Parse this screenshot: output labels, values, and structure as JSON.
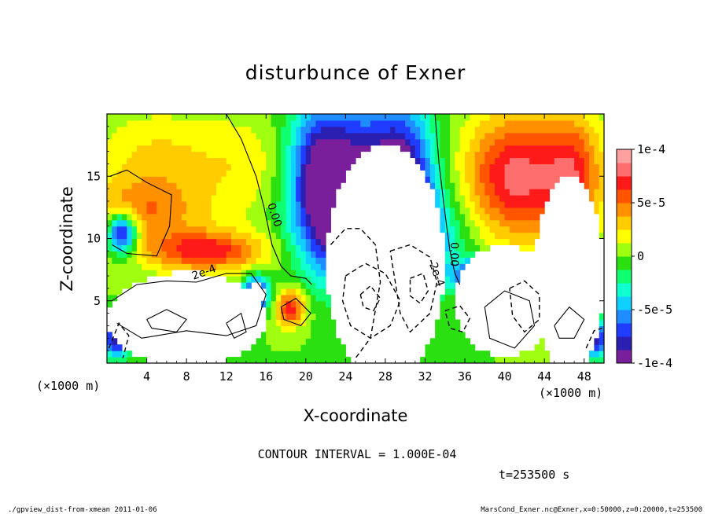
{
  "chart_data": {
    "type": "heatmap",
    "title": "disturbunce of Exner",
    "xlabel": "X-coordinate",
    "ylabel": "Z-coordinate",
    "x_unit": "(×1000 m)",
    "y_unit": "(×1000 m)",
    "xlim": [
      0,
      50
    ],
    "ylim": [
      0,
      20
    ],
    "x_ticks": [
      4,
      8,
      12,
      16,
      20,
      24,
      28,
      32,
      36,
      40,
      44,
      48
    ],
    "y_ticks": [
      5,
      10,
      15
    ],
    "colorbar": {
      "min": -0.0001,
      "max": 0.0001,
      "tick_values": [
        0.0001,
        5e-05,
        0,
        -5e-05,
        -0.0001
      ],
      "tick_labels": [
        "1e-4",
        "5e-5",
        "0",
        "-5e-5",
        "-1e-4"
      ],
      "colors": [
        "#7a1f9c",
        "#2a1fb0",
        "#1f3cff",
        "#1f8cff",
        "#10d0ff",
        "#10ffd0",
        "#10ff70",
        "#2ae010",
        "#a0ff10",
        "#ffff00",
        "#ffcc00",
        "#ff9000",
        "#ff5500",
        "#ff1a1a",
        "#ff6e6e",
        "#ffa0a0"
      ]
    },
    "contour_labels": [
      "0.00",
      "0.00",
      "2e-4",
      "2e-4"
    ],
    "contour_interval": "CONTOUR INTERVAL = 1.000E-04",
    "time": "t=253500 s",
    "footer_left": "./gpview_dist-from-xmean   2011-01-06",
    "footer_right": "MarsCond_Exner.nc@Exner,x=0:50000,z=0:20000,t=253500",
    "field_blobs": [
      {
        "x": 5,
        "z": 16,
        "sx": 6,
        "sz": 4,
        "v": 3e-05
      },
      {
        "x": 1.5,
        "z": 10.5,
        "sx": 1.5,
        "sz": 1.6,
        "v": -0.00011
      },
      {
        "x": 3,
        "z": 12,
        "sx": 7,
        "sz": 2.5,
        "v": 4e-05
      },
      {
        "x": 10,
        "z": 9,
        "sx": 6,
        "sz": 1.6,
        "v": 7e-05
      },
      {
        "x": 14,
        "z": 16,
        "sx": 5,
        "sz": 4,
        "v": 2e-05
      },
      {
        "x": 21,
        "z": 15,
        "sx": 3,
        "sz": 6,
        "v": -6e-05
      },
      {
        "x": 25,
        "z": 15,
        "sx": 5,
        "sz": 6,
        "v": -9e-05
      },
      {
        "x": 30,
        "z": 15,
        "sx": 3,
        "sz": 6,
        "v": -7e-05
      },
      {
        "x": 28,
        "z": 10,
        "sx": 6,
        "sz": 4,
        "v": -0.00011
      },
      {
        "x": 41,
        "z": 15,
        "sx": 5,
        "sz": 5,
        "v": 8e-05
      },
      {
        "x": 47,
        "z": 15,
        "sx": 3,
        "sz": 5,
        "v": 6e-05
      },
      {
        "x": 15,
        "z": 5.5,
        "sx": 1.2,
        "sz": 1.4,
        "v": -0.00011
      },
      {
        "x": 18.5,
        "z": 4.5,
        "sx": 1.5,
        "sz": 1.5,
        "v": 7e-05
      },
      {
        "x": 37,
        "z": 7,
        "sx": 2,
        "sz": 1.2,
        "v": -0.0001
      },
      {
        "x": 1,
        "z": 2,
        "sx": 1.3,
        "sz": 1.5,
        "v": -9e-05
      },
      {
        "x": 49,
        "z": 2,
        "sx": 1.3,
        "sz": 1.5,
        "v": -9e-05
      }
    ],
    "white_regions": [
      {
        "x": 8,
        "z": 3.5,
        "rx": 8,
        "rz": 3.8
      },
      {
        "x": 28,
        "z": 8,
        "rx": 6,
        "rz": 9.5
      },
      {
        "x": 40,
        "z": 5,
        "rx": 5,
        "rz": 4.5
      },
      {
        "x": 46.5,
        "z": 7,
        "rx": 3.5,
        "rz": 8
      },
      {
        "x": 15,
        "z": 5.5,
        "rx": 0.8,
        "rz": 1.2
      }
    ],
    "contour_lines": [
      {
        "dashed": false,
        "points": [
          [
            12,
            20
          ],
          [
            13.5,
            18
          ],
          [
            15,
            15
          ],
          [
            15.8,
            12.5
          ],
          [
            16.6,
            9.5
          ],
          [
            17.5,
            7.8
          ],
          [
            18.5,
            7
          ],
          [
            20,
            6.8
          ],
          [
            20.6,
            6.3
          ]
        ]
      },
      {
        "dashed": false,
        "points": [
          [
            0.3,
            15
          ],
          [
            2,
            15.5
          ],
          [
            4,
            14.5
          ],
          [
            6.5,
            13.5
          ],
          [
            6.3,
            11
          ],
          [
            5,
            8.6
          ],
          [
            2,
            8.8
          ],
          [
            0.5,
            9.5
          ]
        ]
      },
      {
        "dashed": false,
        "points": [
          [
            33,
            20
          ],
          [
            33.4,
            16
          ],
          [
            34,
            12
          ],
          [
            34.5,
            9
          ],
          [
            35,
            7.2
          ],
          [
            35.5,
            6.3
          ]
        ]
      },
      {
        "dashed": false,
        "points": [
          [
            0.5,
            5
          ],
          [
            3,
            6.3
          ],
          [
            6,
            6.6
          ],
          [
            9,
            6.5
          ],
          [
            12,
            7.2
          ],
          [
            14.5,
            7.2
          ],
          [
            16,
            5.5
          ],
          [
            15,
            3
          ],
          [
            12,
            2.2
          ],
          [
            8,
            2.6
          ],
          [
            3.5,
            2
          ],
          [
            1,
            3.2
          ]
        ]
      },
      {
        "dashed": false,
        "points": [
          [
            4,
            3.5
          ],
          [
            6,
            4.3
          ],
          [
            8,
            3.5
          ],
          [
            7,
            2.5
          ],
          [
            4.5,
            2.8
          ],
          [
            4,
            3.5
          ]
        ]
      },
      {
        "dashed": false,
        "points": [
          [
            12,
            3.2
          ],
          [
            13.5,
            4
          ],
          [
            14,
            2.5
          ],
          [
            12.8,
            2
          ],
          [
            12,
            3.2
          ]
        ]
      },
      {
        "dashed": false,
        "points": [
          [
            17.5,
            4.5
          ],
          [
            19,
            5.2
          ],
          [
            20.5,
            4
          ],
          [
            19.5,
            3
          ],
          [
            17.8,
            3.5
          ],
          [
            17.5,
            4.5
          ]
        ]
      },
      {
        "dashed": false,
        "points": [
          [
            38,
            4.5
          ],
          [
            40,
            5.8
          ],
          [
            42.5,
            5
          ],
          [
            43,
            3
          ],
          [
            41,
            1.2
          ],
          [
            38.5,
            2
          ],
          [
            38,
            4.5
          ]
        ]
      },
      {
        "dashed": false,
        "points": [
          [
            45,
            3
          ],
          [
            46.5,
            4.5
          ],
          [
            48,
            3.5
          ],
          [
            47,
            2
          ],
          [
            45.5,
            2
          ],
          [
            45,
            3
          ]
        ]
      },
      {
        "dashed": true,
        "points": [
          [
            22.5,
            9.5
          ],
          [
            24,
            10.8
          ],
          [
            25.5,
            10.8
          ],
          [
            27,
            9.5
          ],
          [
            27.5,
            6.5
          ],
          [
            26.5,
            2
          ],
          [
            25,
            0.4
          ]
        ]
      },
      {
        "dashed": true,
        "points": [
          [
            24,
            7
          ],
          [
            26,
            8
          ],
          [
            28,
            7.2
          ],
          [
            29.5,
            5
          ],
          [
            28.5,
            3
          ],
          [
            26.5,
            2
          ],
          [
            24.5,
            3
          ],
          [
            23.7,
            5
          ],
          [
            24,
            7
          ]
        ]
      },
      {
        "dashed": true,
        "points": [
          [
            25.5,
            5.5
          ],
          [
            26.5,
            6.2
          ],
          [
            27.5,
            5.2
          ],
          [
            26.8,
            4.2
          ],
          [
            25.8,
            4.5
          ],
          [
            25.5,
            5.5
          ]
        ]
      },
      {
        "dashed": true,
        "points": [
          [
            28.5,
            9
          ],
          [
            30.5,
            9.5
          ],
          [
            32.5,
            8.5
          ],
          [
            33.2,
            6.5
          ],
          [
            32.5,
            4
          ],
          [
            30.5,
            2.5
          ],
          [
            29.5,
            4
          ],
          [
            29,
            6.5
          ],
          [
            28.5,
            9
          ]
        ]
      },
      {
        "dashed": true,
        "points": [
          [
            30.5,
            6.8
          ],
          [
            31.8,
            7.2
          ],
          [
            32.3,
            5.8
          ],
          [
            31.5,
            4.8
          ],
          [
            30.5,
            5.4
          ],
          [
            30.5,
            6.8
          ]
        ]
      },
      {
        "dashed": true,
        "points": [
          [
            34,
            4.2
          ],
          [
            35.5,
            4.6
          ],
          [
            36.5,
            3.6
          ],
          [
            35.8,
            2.5
          ],
          [
            34.5,
            2.8
          ],
          [
            34,
            4.2
          ]
        ]
      },
      {
        "dashed": true,
        "points": [
          [
            40.5,
            6
          ],
          [
            42,
            6.6
          ],
          [
            43.5,
            5.5
          ],
          [
            43.5,
            3.5
          ],
          [
            42,
            2.5
          ],
          [
            40.8,
            3.8
          ],
          [
            40.5,
            6
          ]
        ]
      },
      {
        "dashed": true,
        "points": [
          [
            0.2,
            1.2
          ],
          [
            1.2,
            3.2
          ],
          [
            2.2,
            2.2
          ],
          [
            1.6,
            0.4
          ]
        ]
      },
      {
        "dashed": true,
        "points": [
          [
            48.2,
            1.2
          ],
          [
            49,
            2.6
          ],
          [
            49.8,
            2.8
          ]
        ]
      }
    ]
  }
}
